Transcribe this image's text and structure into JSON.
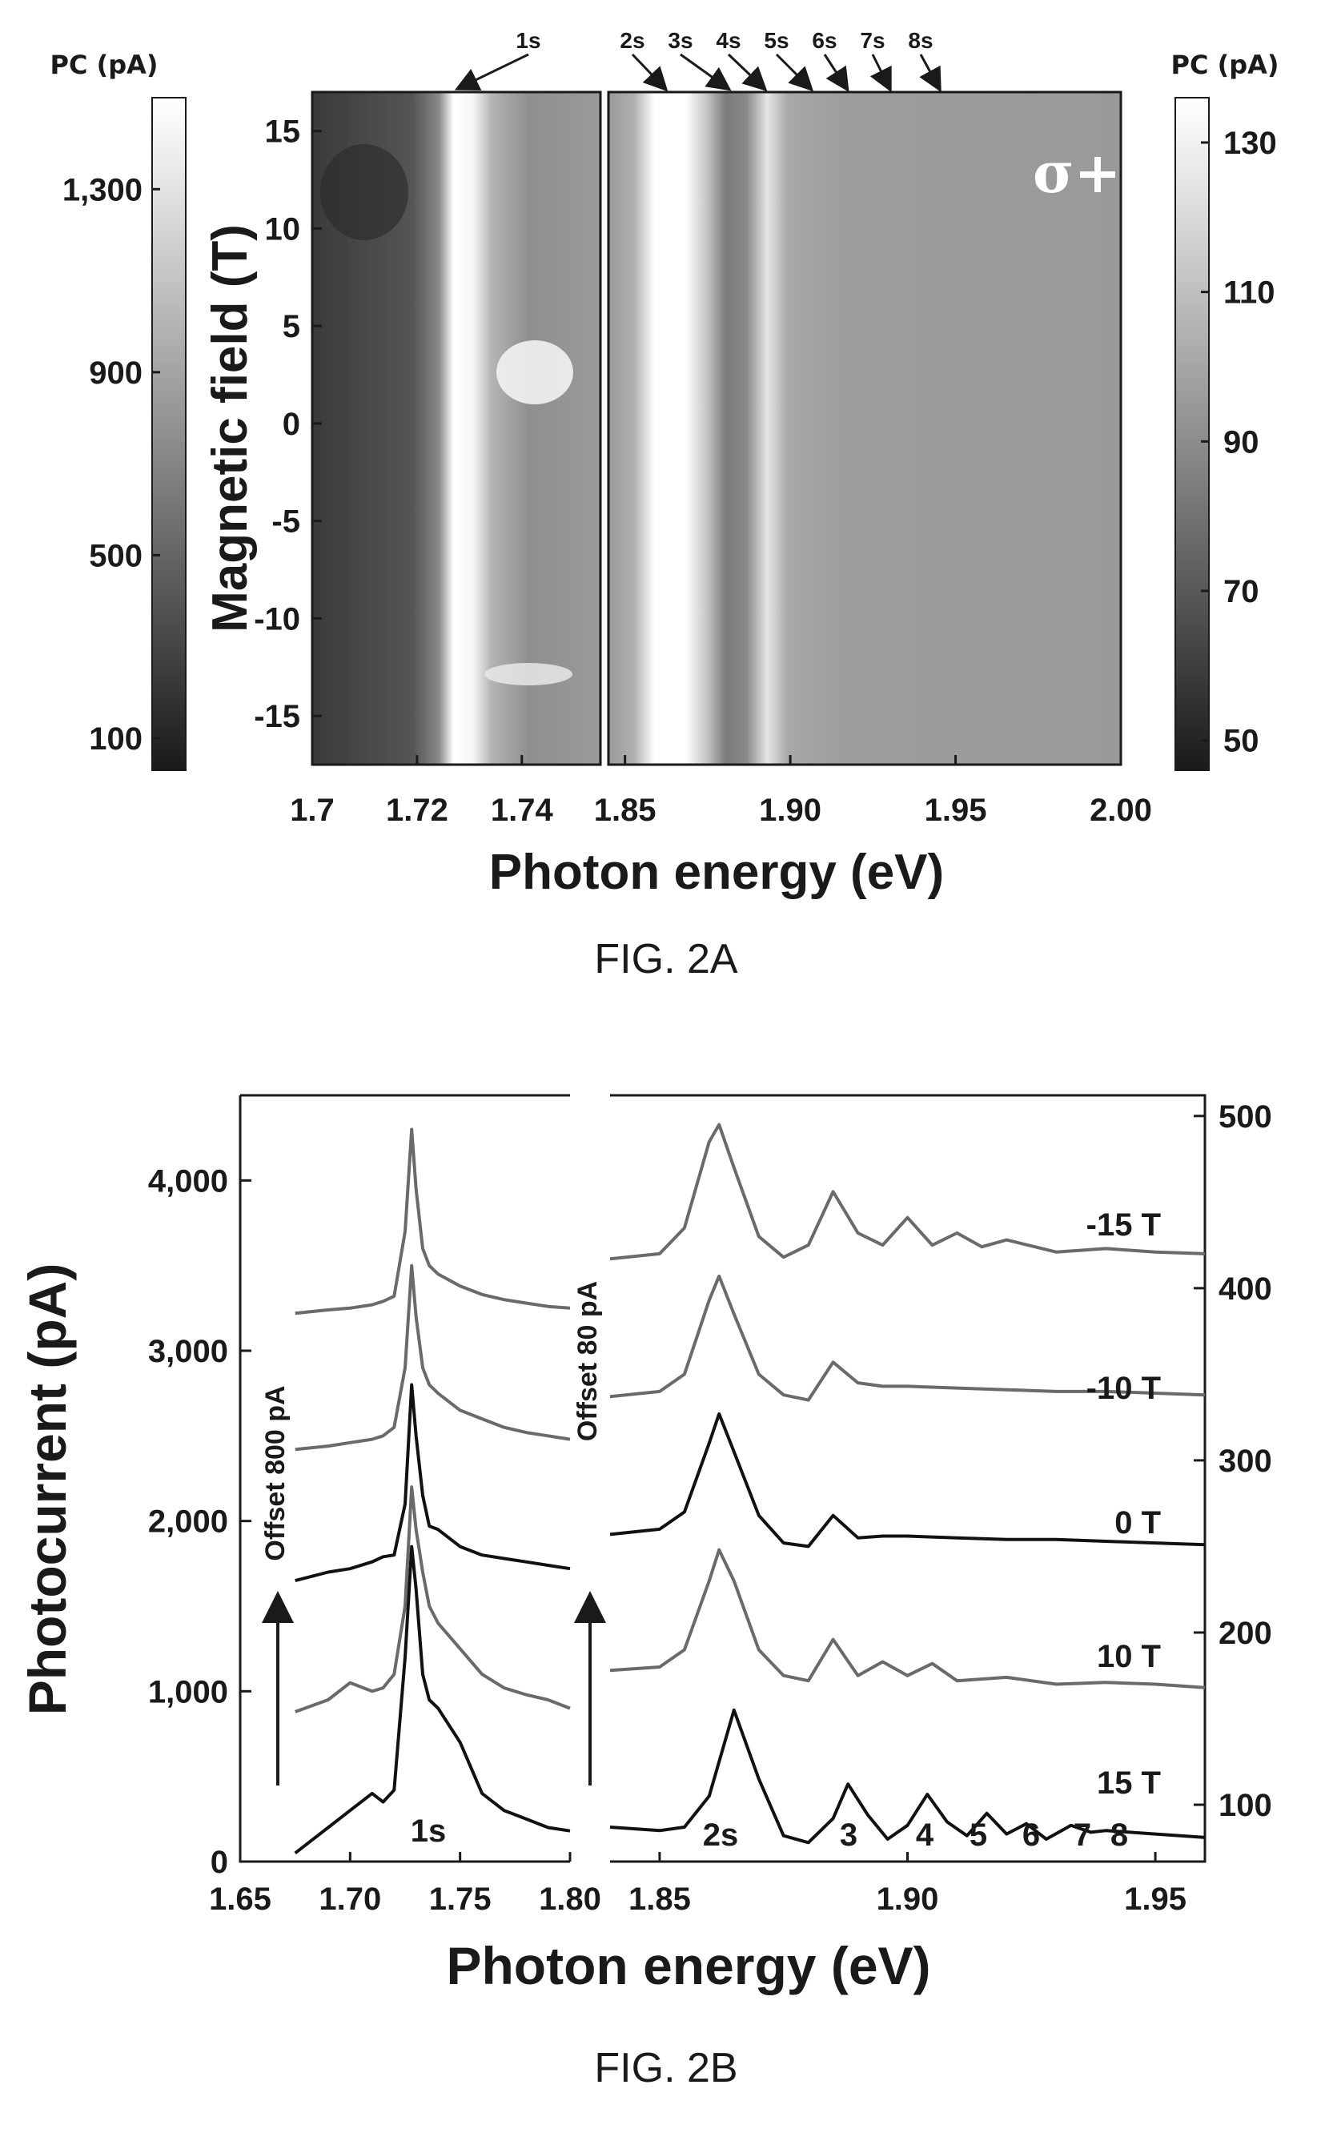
{
  "figure_a": {
    "caption": "FIG. 2A",
    "left_colorbar": {
      "title": "PC (pA)",
      "ticks": [
        "1,300",
        "900",
        "500",
        "100"
      ],
      "tick_values": [
        1300,
        900,
        500,
        100
      ],
      "range": [
        30,
        1500
      ]
    },
    "right_colorbar": {
      "title": "PC (pA)",
      "ticks": [
        "130",
        "110",
        "90",
        "70",
        "50"
      ],
      "tick_values": [
        130,
        110,
        90,
        70,
        50
      ],
      "range": [
        46,
        136
      ]
    },
    "polarization": "σ+",
    "state_labels": [
      "1s",
      "2s",
      "3s",
      "4s",
      "5s",
      "6s",
      "7s",
      "8s"
    ]
  },
  "figure_b": {
    "caption": "FIG. 2B",
    "offset_left": "Offset 800 pA",
    "offset_right": "Offset 80 pA",
    "peak_labels": [
      "1s",
      "2s",
      "3",
      "4",
      "5",
      "6",
      "7",
      "8"
    ],
    "trace_labels": [
      "-15 T",
      "-10 T",
      "0 T",
      "10 T",
      "15 T"
    ]
  },
  "chart_data": [
    {
      "type": "heatmap",
      "title": "",
      "xlabel": "Photon energy (eV)",
      "ylabel": "Magnetic field (T)",
      "panels": [
        {
          "xlim": [
            1.7,
            1.755
          ],
          "ylim": [
            -17.5,
            17
          ],
          "xticks": [
            "1.7",
            "1.72",
            "1.74"
          ],
          "xtick_values": [
            1.7,
            1.72,
            1.74
          ],
          "colorbar": "left"
        },
        {
          "xlim": [
            1.845,
            2.0
          ],
          "ylim": [
            -17.5,
            17
          ],
          "xticks": [
            "1.85",
            "1.90",
            "1.95",
            "2.00"
          ],
          "xtick_values": [
            1.85,
            1.9,
            1.95,
            2.0
          ],
          "colorbar": "right"
        }
      ],
      "yticks": [
        "15",
        "10",
        "5",
        "0",
        "-5",
        "-10",
        "-15"
      ],
      "ytick_values": [
        15,
        10,
        5,
        0,
        -5,
        -10,
        -15
      ],
      "features": [
        {
          "label": "1s",
          "energy": 1.728
        },
        {
          "label": "2s",
          "energy": 1.862
        },
        {
          "label": "3s",
          "energy": 1.881
        },
        {
          "label": "4s",
          "energy": 1.892
        },
        {
          "label": "5s",
          "energy": 1.906
        },
        {
          "label": "6s",
          "energy": 1.917
        },
        {
          "label": "7s",
          "energy": 1.93
        },
        {
          "label": "8s",
          "energy": 1.945
        }
      ]
    },
    {
      "type": "line",
      "title": "",
      "xlabel": "Photon energy (eV)",
      "ylabel": "Photocurrent (pA)",
      "panels": [
        {
          "xlim": [
            1.65,
            1.8
          ],
          "ylim": [
            0,
            4500
          ],
          "xticks": [
            "1.65",
            "1.70",
            "1.75",
            "1.80"
          ],
          "xtick_values": [
            1.65,
            1.7,
            1.75,
            1.8
          ],
          "yticks": [
            "0",
            "1,000",
            "2,000",
            "3,000",
            "4,000"
          ],
          "ytick_values": [
            0,
            1000,
            2000,
            3000,
            4000
          ],
          "series": [
            {
              "name": "15 T",
              "x": [
                1.675,
                1.69,
                1.7,
                1.71,
                1.715,
                1.72,
                1.725,
                1.728,
                1.73,
                1.733,
                1.736,
                1.74,
                1.75,
                1.76,
                1.77,
                1.78,
                1.79,
                1.8
              ],
              "y": [
                50,
                200,
                300,
                400,
                350,
                420,
                1200,
                1850,
                1600,
                1100,
                950,
                900,
                700,
                400,
                300,
                250,
                200,
                180
              ]
            },
            {
              "name": "10 T",
              "x": [
                1.675,
                1.69,
                1.7,
                1.71,
                1.715,
                1.72,
                1.725,
                1.728,
                1.73,
                1.733,
                1.736,
                1.74,
                1.75,
                1.76,
                1.77,
                1.78,
                1.79,
                1.8
              ],
              "y": [
                880,
                950,
                1050,
                1000,
                1020,
                1100,
                1500,
                2200,
                1950,
                1700,
                1500,
                1400,
                1250,
                1100,
                1020,
                980,
                950,
                900
              ]
            },
            {
              "name": "0 T",
              "x": [
                1.675,
                1.69,
                1.7,
                1.71,
                1.715,
                1.72,
                1.725,
                1.728,
                1.73,
                1.733,
                1.736,
                1.74,
                1.75,
                1.76,
                1.77,
                1.78,
                1.79,
                1.8
              ],
              "y": [
                1650,
                1700,
                1720,
                1760,
                1790,
                1800,
                2100,
                2800,
                2500,
                2150,
                1970,
                1950,
                1850,
                1800,
                1780,
                1760,
                1740,
                1720
              ]
            },
            {
              "name": "-10 T",
              "x": [
                1.675,
                1.69,
                1.7,
                1.71,
                1.715,
                1.72,
                1.725,
                1.728,
                1.73,
                1.733,
                1.736,
                1.74,
                1.75,
                1.76,
                1.77,
                1.78,
                1.79,
                1.8
              ],
              "y": [
                2420,
                2440,
                2460,
                2480,
                2500,
                2550,
                2900,
                3500,
                3200,
                2900,
                2800,
                2750,
                2650,
                2600,
                2550,
                2520,
                2500,
                2480
              ]
            },
            {
              "name": "-15 T",
              "x": [
                1.675,
                1.69,
                1.7,
                1.71,
                1.715,
                1.72,
                1.725,
                1.728,
                1.73,
                1.733,
                1.736,
                1.74,
                1.75,
                1.76,
                1.77,
                1.78,
                1.79,
                1.8
              ],
              "y": [
                3220,
                3240,
                3250,
                3270,
                3290,
                3320,
                3700,
                4300,
                3950,
                3600,
                3500,
                3450,
                3380,
                3330,
                3300,
                3280,
                3260,
                3250
              ]
            }
          ]
        },
        {
          "xlim": [
            1.84,
            1.96
          ],
          "ylim": [
            67,
            512
          ],
          "xticks": [
            "1.85",
            "1.90",
            "1.95"
          ],
          "xtick_values": [
            1.85,
            1.9,
            1.95
          ],
          "yticks": [
            "100",
            "200",
            "300",
            "400",
            "500"
          ],
          "ytick_values": [
            100,
            200,
            300,
            400,
            500
          ],
          "series": [
            {
              "name": "15 T",
              "x": [
                1.84,
                1.85,
                1.855,
                1.86,
                1.865,
                1.87,
                1.875,
                1.88,
                1.885,
                1.888,
                1.892,
                1.896,
                1.9,
                1.904,
                1.908,
                1.912,
                1.916,
                1.92,
                1.924,
                1.928,
                1.933,
                1.937,
                1.94,
                1.95,
                1.96
              ],
              "y": [
                87,
                85,
                87,
                105,
                155,
                115,
                82,
                78,
                92,
                112,
                94,
                80,
                88,
                106,
                90,
                82,
                95,
                83,
                89,
                80,
                88,
                84,
                85,
                83,
                81
              ]
            },
            {
              "name": "10 T",
              "x": [
                1.84,
                1.85,
                1.855,
                1.86,
                1.862,
                1.865,
                1.87,
                1.875,
                1.88,
                1.885,
                1.89,
                1.895,
                1.9,
                1.905,
                1.91,
                1.92,
                1.93,
                1.94,
                1.95,
                1.96
              ],
              "y": [
                178,
                180,
                190,
                230,
                248,
                230,
                190,
                175,
                172,
                196,
                175,
                183,
                175,
                182,
                172,
                174,
                170,
                171,
                170,
                168
              ]
            },
            {
              "name": "0 T",
              "x": [
                1.84,
                1.85,
                1.855,
                1.86,
                1.862,
                1.865,
                1.87,
                1.875,
                1.88,
                1.885,
                1.89,
                1.895,
                1.9,
                1.91,
                1.92,
                1.93,
                1.94,
                1.95,
                1.96
              ],
              "y": [
                257,
                260,
                270,
                310,
                327,
                305,
                268,
                252,
                250,
                268,
                255,
                256,
                256,
                255,
                254,
                254,
                253,
                252,
                251
              ]
            },
            {
              "name": "-10 T",
              "x": [
                1.84,
                1.85,
                1.855,
                1.86,
                1.862,
                1.865,
                1.87,
                1.875,
                1.88,
                1.885,
                1.89,
                1.895,
                1.9,
                1.91,
                1.92,
                1.93,
                1.94,
                1.95,
                1.96
              ],
              "y": [
                337,
                340,
                350,
                393,
                407,
                385,
                350,
                338,
                335,
                357,
                345,
                343,
                343,
                342,
                341,
                340,
                340,
                339,
                338
              ]
            },
            {
              "name": "-15 T",
              "x": [
                1.84,
                1.85,
                1.855,
                1.86,
                1.862,
                1.865,
                1.87,
                1.875,
                1.88,
                1.885,
                1.89,
                1.895,
                1.9,
                1.905,
                1.91,
                1.915,
                1.92,
                1.93,
                1.94,
                1.95,
                1.96
              ],
              "y": [
                417,
                420,
                435,
                485,
                495,
                470,
                430,
                418,
                425,
                456,
                432,
                425,
                441,
                425,
                432,
                424,
                428,
                421,
                423,
                421,
                420
              ]
            }
          ]
        }
      ]
    }
  ]
}
